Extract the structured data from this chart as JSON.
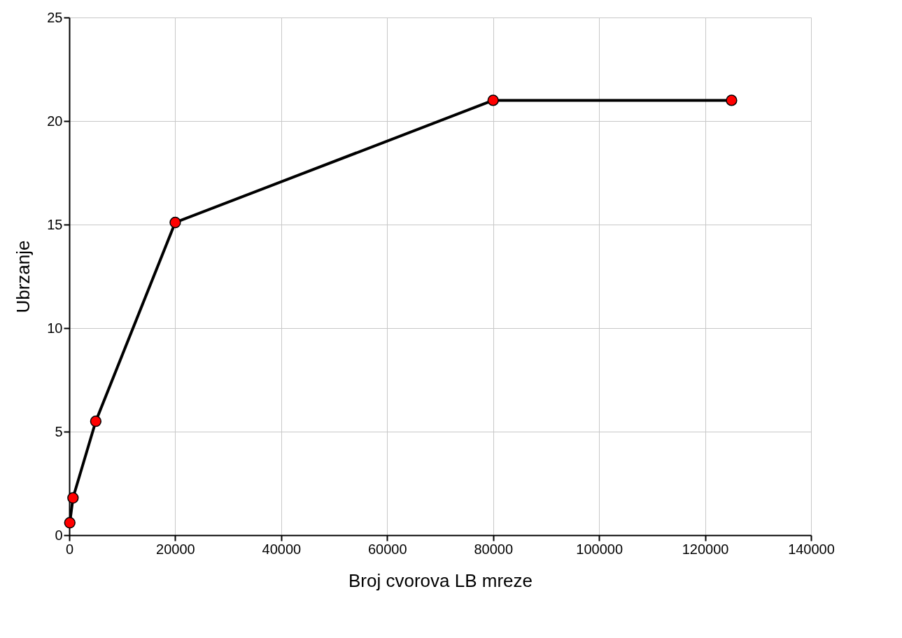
{
  "chart_data": {
    "type": "line",
    "xlabel": "Broj cvorova LB mreze",
    "ylabel": "Ubrzanje",
    "x": [
      100,
      700,
      5000,
      20000,
      80000,
      125000
    ],
    "series": [
      {
        "color": "#000000",
        "values": [
          0.6,
          1.8,
          5.5,
          15.1,
          21.0,
          21.0
        ]
      }
    ],
    "xlim": [
      0,
      140000
    ],
    "xticks": [
      0,
      20000,
      40000,
      60000,
      80000,
      100000,
      120000,
      140000
    ],
    "ylim": [
      0,
      25
    ],
    "yticks": [
      0,
      5,
      10,
      15,
      20,
      25
    ],
    "grid": true,
    "marker": "circle",
    "line_style": "solid"
  }
}
